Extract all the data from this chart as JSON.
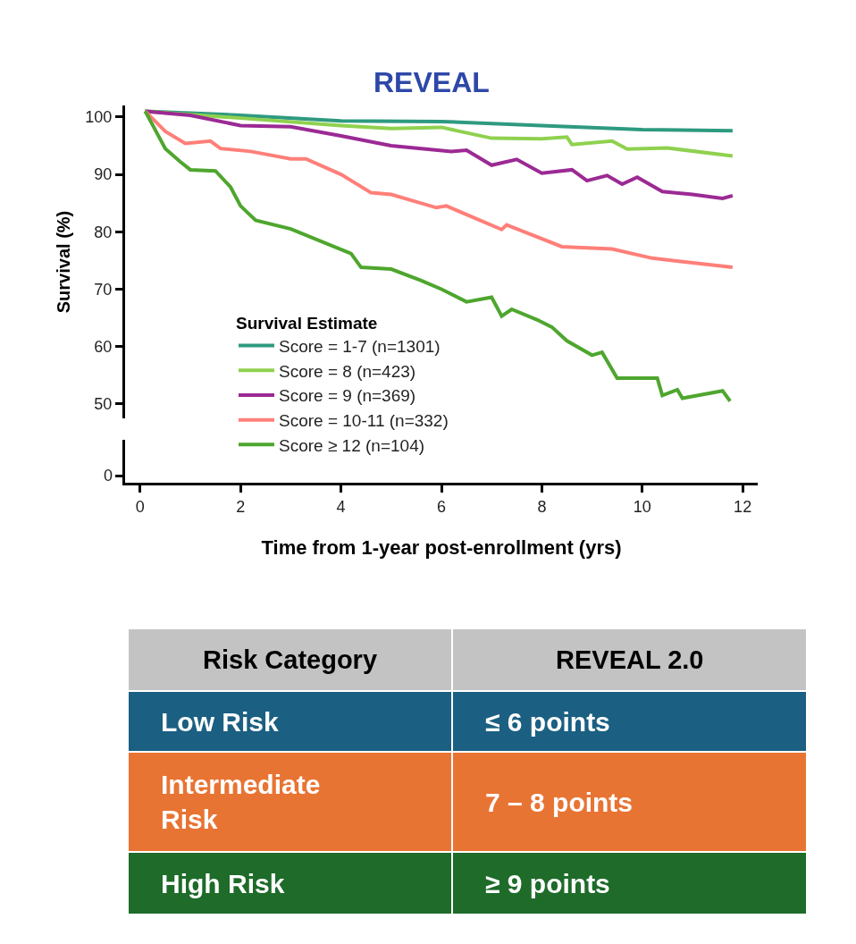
{
  "chart_data": [
    {
      "type": "line",
      "title": "REVEAL",
      "xlabel": "Time from 1-year post-enrollment (yrs)",
      "ylabel": "Survival (%)",
      "legend_title": "Survival Estimate",
      "xlim": [
        -0.3,
        12.3
      ],
      "xticks": [
        0,
        2,
        4,
        6,
        8,
        10,
        12
      ],
      "ylim": [
        47.5,
        102
      ],
      "yticks": [
        50,
        60,
        70,
        80,
        90,
        100
      ],
      "annotations": [
        "0"
      ],
      "legend": "center left",
      "marker": "none",
      "line_style": "solid",
      "series": [
        {
          "name": "Score = 1-7 (n=1301)",
          "color": "#2e9a80",
          "x": [
            0.1,
            2,
            4,
            6,
            8,
            10,
            11.8
          ],
          "values": [
            101,
            100.3,
            99.3,
            99.2,
            98.5,
            97.8,
            97.6
          ]
        },
        {
          "name": "Score = 8 (n=423)",
          "color": "#8fd14f",
          "x": [
            0.1,
            2,
            4,
            5,
            6,
            7,
            8,
            8.5,
            8.6,
            9.4,
            9.7,
            10.5,
            11.8
          ],
          "values": [
            101,
            99.8,
            98.5,
            98,
            98.2,
            96.3,
            96.2,
            96.5,
            95.2,
            95.8,
            94.4,
            94.6,
            93.2
          ]
        },
        {
          "name": "Score = 9 (n=369)",
          "color": "#9b2a94",
          "x": [
            0.1,
            1,
            2,
            3,
            4,
            5,
            6.2,
            6.5,
            7,
            7.5,
            8,
            8.6,
            8.9,
            9.3,
            9.6,
            9.9,
            10.4,
            11,
            11.6,
            11.8
          ],
          "values": [
            101,
            100.3,
            98.5,
            98.3,
            96.7,
            95,
            94,
            94.2,
            91.6,
            92.6,
            90.2,
            90.8,
            88.9,
            89.8,
            88.3,
            89.5,
            87,
            86.5,
            85.8,
            86.3
          ]
        },
        {
          "name": "Score = 10-11 (n=332)",
          "color": "#ff7f79",
          "x": [
            0.1,
            0.5,
            0.9,
            1.4,
            1.6,
            2.2,
            3,
            3.3,
            4,
            4.6,
            5,
            5.9,
            6.1,
            7.2,
            7.3,
            8.4,
            9.4,
            10.2,
            11.8
          ],
          "values": [
            101,
            97.5,
            95.4,
            95.8,
            94.5,
            94,
            92.7,
            92.7,
            90,
            86.8,
            86.5,
            84.2,
            84.5,
            80.4,
            81.2,
            77.4,
            77,
            75.4,
            73.8
          ]
        },
        {
          "name": "Score ≥ 12 (n=104)",
          "color": "#4ea62e",
          "x": [
            0.1,
            0.5,
            0.8,
            1,
            1.5,
            1.8,
            2,
            2.3,
            3,
            4.2,
            4.4,
            5,
            5.6,
            6,
            6.5,
            7,
            7.2,
            7.4,
            7.9,
            8.2,
            8.5,
            9,
            9.2,
            9.5,
            10.3,
            10.4,
            10.7,
            10.8,
            11.6,
            11.75
          ],
          "values": [
            101,
            94.5,
            92.2,
            90.8,
            90.6,
            87.8,
            84.5,
            82,
            80.5,
            76.2,
            73.8,
            73.5,
            71.5,
            70,
            67.8,
            68.6,
            65.3,
            66.5,
            64.7,
            63.4,
            61,
            58.5,
            59,
            54.5,
            54.5,
            51.5,
            52.5,
            51,
            52.3,
            50.5
          ]
        }
      ]
    },
    {
      "type": "other",
      "colors": [
        "#c3c3c3",
        "#1b5f82",
        "#e87433",
        "#1e6b2a"
      ],
      "annotations": [
        "Risk Category",
        "REVEAL 2.0",
        "Low Risk",
        "≤ 6 points",
        "Intermediate Risk",
        "7 – 8 points",
        "High Risk",
        "≥ 9 points"
      ]
    }
  ]
}
